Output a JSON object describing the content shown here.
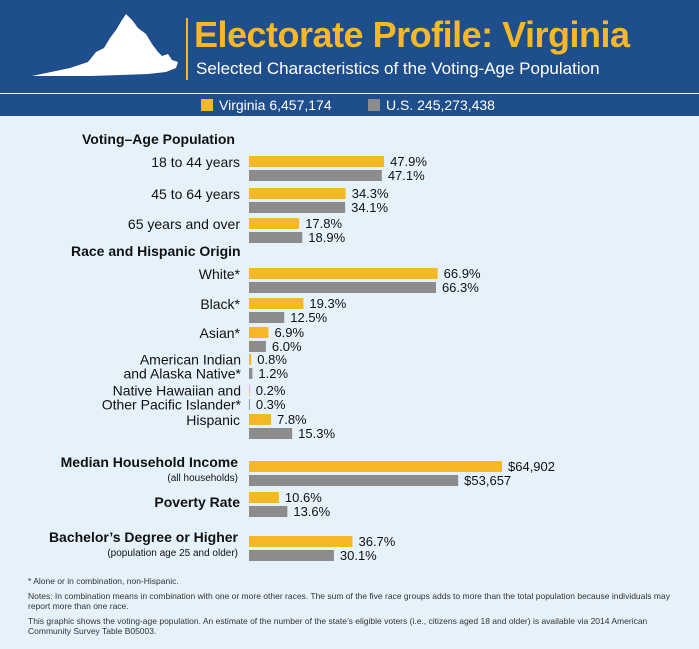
{
  "header": {
    "title": "Electorate Profile: Virginia",
    "subtitle": "Selected Characteristics of the Voting-Age Population",
    "map_icon": "virginia-state-shape"
  },
  "legend": {
    "items": [
      {
        "label": "Virginia 6,457,174",
        "color": "#f6b826"
      },
      {
        "label": "U.S. 245,273,438",
        "color": "#8c8c8c"
      }
    ]
  },
  "colors": {
    "virginia": "#f6b826",
    "us": "#8c8c8c",
    "background": "#e6f2fb",
    "header": "#1f4e8c"
  },
  "chart_data": {
    "type": "bar",
    "orientation": "horizontal",
    "series_names": [
      "Virginia 6,457,174",
      "U.S. 245,273,438"
    ],
    "groups": [
      {
        "heading": "Voting–Age Population",
        "rows": [
          {
            "label": [
              "18 to 44 years"
            ],
            "values": [
              47.9,
              47.1
            ],
            "value_labels": [
              "47.9%",
              "47.1%"
            ]
          },
          {
            "label": [
              "45 to 64 years"
            ],
            "values": [
              34.3,
              34.1
            ],
            "value_labels": [
              "34.3%",
              "34.1%"
            ]
          },
          {
            "label": [
              "65 years and over"
            ],
            "values": [
              17.8,
              18.9
            ],
            "value_labels": [
              "17.8%",
              "18.9%"
            ]
          }
        ]
      },
      {
        "heading": "Race and Hispanic Origin",
        "rows": [
          {
            "label": [
              "White*"
            ],
            "values": [
              66.9,
              66.3
            ],
            "value_labels": [
              "66.9%",
              "66.3%"
            ]
          },
          {
            "label": [
              "Black*"
            ],
            "values": [
              19.3,
              12.5
            ],
            "value_labels": [
              "19.3%",
              "12.5%"
            ]
          },
          {
            "label": [
              "Asian*"
            ],
            "values": [
              6.9,
              6.0
            ],
            "value_labels": [
              "6.9%",
              "6.0%"
            ]
          },
          {
            "label": [
              "American Indian",
              "and Alaska Native*"
            ],
            "values": [
              0.8,
              1.2
            ],
            "value_labels": [
              "0.8%",
              "1.2%"
            ]
          },
          {
            "label": [
              "Native Hawaiian and",
              "Other Pacific Islander*"
            ],
            "values": [
              0.2,
              0.3
            ],
            "value_labels": [
              "0.2%",
              "0.3%"
            ]
          },
          {
            "label": [
              "Hispanic"
            ],
            "values": [
              7.8,
              15.3
            ],
            "value_labels": [
              "7.8%",
              "15.3%"
            ]
          }
        ]
      },
      {
        "heading": "",
        "rows": [
          {
            "label": [
              "Median Household Income",
              "(all households)"
            ],
            "bold_first": true,
            "values": [
              64902,
              53657
            ],
            "value_labels": [
              "$64,902",
              "$53,657"
            ],
            "unit": "dollars"
          },
          {
            "label": [
              "Poverty Rate"
            ],
            "bold_first": true,
            "values": [
              10.6,
              13.6
            ],
            "value_labels": [
              "10.6%",
              "13.6%"
            ]
          }
        ]
      },
      {
        "heading": "",
        "rows": [
          {
            "label": [
              "Bachelor’s Degree or Higher",
              "(population age 25 and older)"
            ],
            "bold_first": true,
            "values": [
              36.7,
              30.1
            ],
            "value_labels": [
              "36.7%",
              "30.1%"
            ]
          }
        ]
      }
    ]
  },
  "footnotes": [
    "* Alone or in combination, non-Hispanic.",
    "Notes: In combination means in combination with one or more other races. The sum of the five race groups adds to more than the total population because individuals may report more than one race.",
    "This graphic shows the voting-age population. An estimate of the number of the state’s eligible voters (i.e., citizens aged 18 and older) is available via 2014 American Community Survey Table B05003."
  ]
}
